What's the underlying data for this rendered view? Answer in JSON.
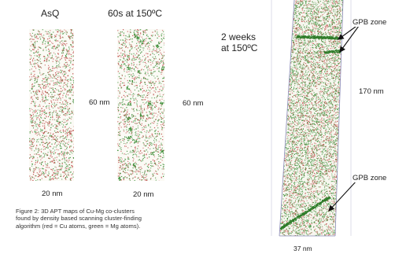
{
  "left_panel": {
    "label_asq": "AsQ",
    "label_60s": "60s at 150ºC",
    "height_label_1": "60 nm",
    "height_label_2": "60 nm",
    "width_label_1": "20 nm",
    "width_label_2": "20 nm"
  },
  "caption": {
    "line1": "Figure 2:  3D APT maps of Cu-Mg co-clusters",
    "line2": "found by density based scanning cluster-finding",
    "line3": "algorithm  (red = Cu atoms, green = Mg atoms)."
  },
  "right_panel": {
    "condition_line1": "2 weeks",
    "condition_line2": "at 150ºC",
    "gpb_label_top": "GPB zone",
    "gpb_label_bottom": "GPB zone",
    "height_label": "170 nm",
    "width_label": "37 nm"
  },
  "colors": {
    "cu_atoms": "#c0504d",
    "mg_atoms": "#3f8f3a",
    "box_edge": "#8a8ab8"
  }
}
